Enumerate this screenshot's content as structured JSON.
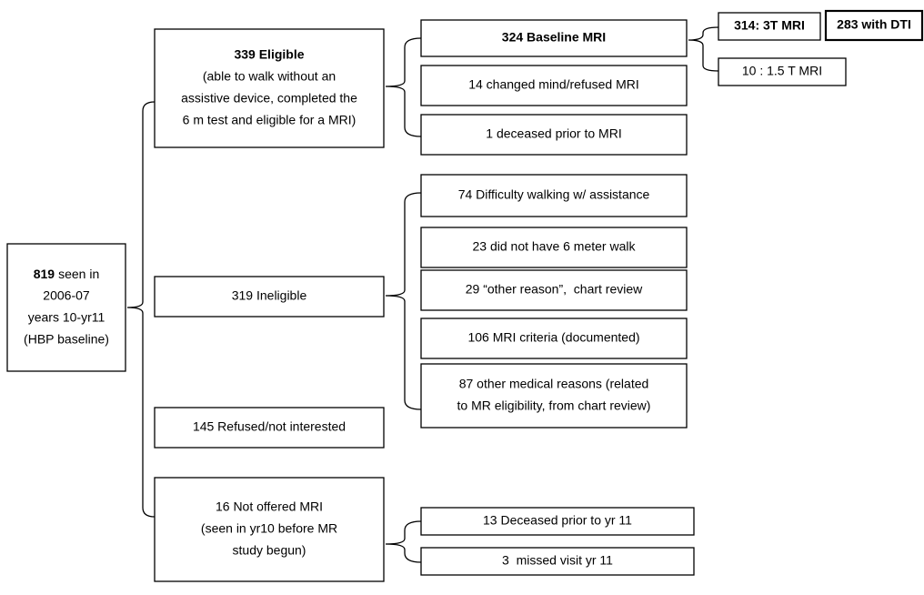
{
  "nodes": [
    {
      "count": "819",
      "lines": [
        "seen in",
        "2006-07",
        "years 10-yr11",
        "(HBP baseline)"
      ]
    },
    {
      "title": "339 Eligible",
      "lines": [
        "(able to walk without an",
        "assistive device, completed the",
        "6 m test and eligible for a MRI)"
      ]
    },
    {
      "lines": [
        "319 Ineligible"
      ]
    },
    {
      "lines": [
        "145 Refused/not interested"
      ]
    },
    {
      "lines": [
        "16 Not offered MRI",
        "(seen in yr10 before MR",
        "study begun)"
      ]
    },
    {
      "title": "324 Baseline MRI"
    },
    {
      "lines": [
        "14 changed mind/refused MRI"
      ]
    },
    {
      "lines": [
        "1 deceased prior to MRI"
      ]
    },
    {
      "title": "314: 3T MRI"
    },
    {
      "title": "283 with DTI"
    },
    {
      "lines": [
        "10 : 1.5 T MRI"
      ]
    },
    {
      "lines": [
        "74 Difficulty walking w/ assistance"
      ]
    },
    {
      "lines": [
        "23 did not have 6 meter walk"
      ]
    },
    {
      "lines": [
        "29 “other reason”,  chart review"
      ]
    },
    {
      "lines": [
        "106 MRI criteria (documented)"
      ]
    },
    {
      "lines": [
        "87 other medical reasons (related",
        "to MR eligibility, from chart review)"
      ]
    },
    {
      "lines": [
        "13 Deceased prior to yr 11"
      ]
    },
    {
      "lines": [
        "3  missed visit yr 11"
      ]
    }
  ]
}
